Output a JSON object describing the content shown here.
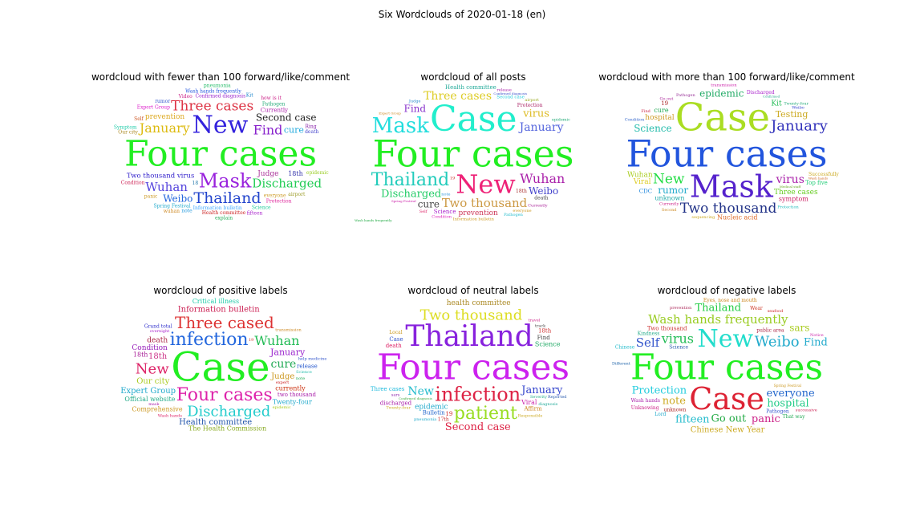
{
  "suptitle": "Six Wordclouds of 2020-01-18 (en)",
  "chart_data": [
    {
      "type": "wordcloud",
      "title": "wordcloud with fewer than 100 forward/like/comment",
      "words": [
        [
          "Four cases",
          44,
          "#22ee22"
        ],
        [
          "New",
          30,
          "#3322dd"
        ],
        [
          "Mask",
          24,
          "#9922dd"
        ],
        [
          "Thailand",
          19,
          "#2244cc"
        ],
        [
          "Three cases",
          17,
          "#dd3344"
        ],
        [
          "Two thousand virus",
          17,
          "#3322cc"
        ],
        [
          "Find",
          16,
          "#8822cc"
        ],
        [
          "January",
          16,
          "#ddbb11"
        ],
        [
          "Discharged",
          15,
          "#22cc55"
        ],
        [
          "Wuhan",
          15,
          "#5544dd"
        ],
        [
          "Second case",
          12,
          "#222222"
        ],
        [
          "Weibo",
          12,
          "#2266dd"
        ],
        [
          "Judge",
          9,
          "#aa3399"
        ],
        [
          "cure",
          11,
          "#22aadd"
        ],
        [
          "prevention",
          9,
          "#ddaa22"
        ],
        [
          "18th",
          8,
          "#3333aa"
        ],
        [
          "Currently",
          7,
          "#aa22aa"
        ],
        [
          "Information bulletin",
          6,
          "#44aaff"
        ],
        [
          "everyone",
          6,
          "#cc9922"
        ],
        [
          "Confirmed diagnosis",
          6,
          "#9922cc"
        ],
        [
          "Pathogen",
          6,
          "#22aa77"
        ],
        [
          "Health committee",
          6,
          "#cc2222"
        ],
        [
          "Expert Group",
          6,
          "#dd22cc"
        ],
        [
          "Wash hands frequently",
          6,
          "#2255dd"
        ],
        [
          "Spring Festival",
          6,
          "#22aacc"
        ],
        [
          "Protection",
          6,
          "#dd2299"
        ],
        [
          "Science",
          6,
          "#22cc99"
        ],
        [
          "Condition",
          6,
          "#cc2255"
        ],
        [
          "death",
          6,
          "#4444cc"
        ],
        [
          "note",
          6,
          "#2299dd"
        ],
        [
          "panic",
          6,
          "#cc9922"
        ],
        [
          "Our city",
          6,
          "#aa8822"
        ],
        [
          "how is it",
          6,
          "#cc2288"
        ],
        [
          "epidemic",
          6,
          "#99cc22"
        ],
        [
          "Video",
          6,
          "#cc2288"
        ],
        [
          "Kit",
          6,
          "#2288cc"
        ],
        [
          "airport",
          6,
          "#999922"
        ],
        [
          "explain",
          6,
          "#22aa55"
        ],
        [
          "Self",
          6,
          "#cc5522"
        ],
        [
          "rumor",
          6,
          "#3355cc"
        ],
        [
          "Symptom",
          6,
          "#22ccaa"
        ],
        [
          "fifteen",
          6,
          "#aa22cc"
        ],
        [
          "wuhan",
          6,
          "#cc8822"
        ],
        [
          "18",
          6,
          "#2277aa"
        ],
        [
          "Ring",
          6,
          "#8822aa"
        ],
        [
          "pneumonia",
          6,
          "#22bb66"
        ]
      ]
    },
    {
      "type": "wordcloud",
      "title": "wordcloud of all posts",
      "words": [
        [
          "Four cases",
          46,
          "#22ee22"
        ],
        [
          "Case",
          44,
          "#22eecc"
        ],
        [
          "New",
          32,
          "#ee2277"
        ],
        [
          "Thailand",
          22,
          "#22ccbb"
        ],
        [
          "Mask",
          26,
          "#22dddd"
        ],
        [
          "Wuhan",
          16,
          "#aa22aa"
        ],
        [
          "Two thousand",
          15,
          "#cc9944"
        ],
        [
          "Discharged",
          13,
          "#22cc66"
        ],
        [
          "Three cases",
          14,
          "#ddcc22"
        ],
        [
          "January",
          14,
          "#5566dd"
        ],
        [
          "virus",
          13,
          "#ddbb22"
        ],
        [
          "Find",
          12,
          "#8833cc"
        ],
        [
          "Weibo",
          12,
          "#4444cc"
        ],
        [
          "cure",
          12,
          "#444444"
        ],
        [
          "prevention",
          9,
          "#cc3355"
        ],
        [
          "Second case",
          11,
          "#22ccdd"
        ],
        [
          "Science",
          7,
          "#aa22cc"
        ],
        [
          "Health committee",
          7,
          "#22aa99"
        ],
        [
          "Protection",
          6,
          "#aa2266"
        ],
        [
          "death",
          6,
          "#444444"
        ],
        [
          "Information bulletin",
          5,
          "#cc9922"
        ],
        [
          "Wash hands frequently",
          5,
          "#22aa44"
        ],
        [
          "Confirmed diagnosis",
          5,
          "#4455cc"
        ],
        [
          "Spring Festival",
          5,
          "#cc22aa"
        ],
        [
          "Pathogen",
          5,
          "#22bbcc"
        ],
        [
          "18th",
          6,
          "#aa3333"
        ],
        [
          "Currently",
          5,
          "#aa2299"
        ],
        [
          "Expert Group",
          5,
          "#cc8822"
        ],
        [
          "airport",
          5,
          "#99aa22"
        ],
        [
          "everyone",
          5,
          "#cc9922"
        ],
        [
          "epidemic",
          5,
          "#22aa77"
        ],
        [
          "Judge",
          5,
          "#2288cc"
        ],
        [
          "Condition",
          5,
          "#dd22bb"
        ],
        [
          "note",
          5,
          "#3399dd"
        ],
        [
          "Self",
          5,
          "#dd2266"
        ],
        [
          "19",
          5,
          "#cc2222"
        ],
        [
          "release",
          5,
          "#aa22aa"
        ]
      ]
    },
    {
      "type": "wordcloud",
      "title": "wordcloud with more than 100 forward/like/comment",
      "words": [
        [
          "Four cases",
          46,
          "#2255dd"
        ],
        [
          "Case",
          48,
          "#aadd22"
        ],
        [
          "Mask",
          38,
          "#5522cc"
        ],
        [
          "New",
          34,
          "#22dd44"
        ],
        [
          "Two thousand",
          17,
          "#223388"
        ],
        [
          "January",
          18,
          "#3333bb"
        ],
        [
          "virus",
          14,
          "#aa22aa"
        ],
        [
          "Science",
          12,
          "#22bbaa"
        ],
        [
          "rumor",
          12,
          "#22aacc"
        ],
        [
          "Testing",
          11,
          "#ccaa22"
        ],
        [
          "epidemic",
          12,
          "#22aa66"
        ],
        [
          "Three cases",
          9,
          "#66cc22"
        ],
        [
          "hospital",
          9,
          "#cc9922"
        ],
        [
          "Wuhan",
          9,
          "#aacc22"
        ],
        [
          "Kit",
          9,
          "#22bb55"
        ],
        [
          "Viral",
          9,
          "#ddcc22"
        ],
        [
          "unknown",
          8,
          "#22aaaa"
        ],
        [
          "Nucleic acid",
          8,
          "#dd6622"
        ],
        [
          "symptom",
          8,
          "#cc2266"
        ],
        [
          "cure",
          8,
          "#22aa55"
        ],
        [
          "Top five",
          7,
          "#22cc77"
        ],
        [
          "Medical staff",
          7,
          "#66aa22"
        ],
        [
          "Discharged",
          6,
          "#aa22cc"
        ],
        [
          "CDC",
          7,
          "#2288dd"
        ],
        [
          "Successfully",
          6,
          "#ccaa22"
        ],
        [
          "Pathogen",
          5,
          "#993399"
        ],
        [
          "19",
          7,
          "#aa2222"
        ],
        [
          "Currently",
          5,
          "#cc2288"
        ],
        [
          "sequencing",
          5,
          "#ccaa22"
        ],
        [
          "transmission",
          5,
          "#cc22aa"
        ],
        [
          "Twenty-four",
          5,
          "#22aa77"
        ],
        [
          "Weibo",
          5,
          "#3344cc"
        ],
        [
          "Protection",
          5,
          "#22bbbb"
        ],
        [
          "Wash hands",
          5,
          "#cc6622"
        ],
        [
          "Condition",
          5,
          "#3366cc"
        ],
        [
          "Go out",
          5,
          "#aa2299"
        ],
        [
          "Confirmed",
          5,
          "#22aa88"
        ],
        [
          "Find",
          5,
          "#cc2244"
        ],
        [
          "Second",
          5,
          "#cc8822"
        ]
      ]
    },
    {
      "type": "wordcloud",
      "title": "wordcloud of positive labels",
      "words": [
        [
          "Case",
          50,
          "#22ee22"
        ],
        [
          "Four cases",
          22,
          "#dd22aa"
        ],
        [
          "infection",
          22,
          "#2266dd"
        ],
        [
          "Three cased",
          20,
          "#dd3333"
        ],
        [
          "Discharged",
          18,
          "#22cccc"
        ],
        [
          "Wuhan",
          16,
          "#22bb55"
        ],
        [
          "New",
          18,
          "#dd2266"
        ],
        [
          "cure",
          14,
          "#22aa55"
        ],
        [
          "Health committee",
          10,
          "#2255aa"
        ],
        [
          "January",
          11,
          "#9922cc"
        ],
        [
          "Expert Group",
          10,
          "#22aacc"
        ],
        [
          "Judge",
          10,
          "#cc9922"
        ],
        [
          "Information bulletin",
          10,
          "#cc2255"
        ],
        [
          "Our city",
          10,
          "#aacc22"
        ],
        [
          "18th",
          10,
          "#cc3388"
        ],
        [
          "Condition",
          9,
          "#9922bb"
        ],
        [
          "currently",
          8,
          "#cc3311"
        ],
        [
          "death",
          9,
          "#aa2244"
        ],
        [
          "Official website",
          8,
          "#22aa88"
        ],
        [
          "The Health Commission",
          8,
          "#88aa22"
        ],
        [
          "Comprehensive",
          8,
          "#cc9922"
        ],
        [
          "two thousand",
          7,
          "#aa22aa"
        ],
        [
          "Twenty-four",
          8,
          "#22aacc"
        ],
        [
          "Grand total",
          6,
          "#3333cc"
        ],
        [
          "18th",
          8,
          "#aa2299"
        ],
        [
          "release",
          7,
          "#2255cc"
        ],
        [
          "Critical illness",
          8,
          "#22ccaa"
        ],
        [
          "expert",
          5,
          "#cc2222"
        ],
        [
          "note",
          5,
          "#22aa55"
        ],
        [
          "overnight",
          5,
          "#aa22cc"
        ],
        [
          "transmission",
          5,
          "#cc8822"
        ],
        [
          "Science",
          5,
          "#22bbaa"
        ],
        [
          "help medicine",
          5,
          "#3355cc"
        ],
        [
          "Wash hands",
          5,
          "#dd2266"
        ],
        [
          "epidemic",
          5,
          "#aacc22"
        ],
        [
          "mask",
          5,
          "#aa22aa"
        ],
        [
          "19",
          5,
          "#cc3322"
        ]
      ]
    },
    {
      "type": "wordcloud",
      "title": "wordcloud of neutral labels",
      "words": [
        [
          "Four cases",
          44,
          "#cc22ee"
        ],
        [
          "Thailand",
          36,
          "#8822dd"
        ],
        [
          "infection",
          24,
          "#dd2244"
        ],
        [
          "patient",
          22,
          "#99dd22"
        ],
        [
          "Two thousand",
          18,
          "#dddd22"
        ],
        [
          "New",
          14,
          "#22bbcc"
        ],
        [
          "Second case",
          13,
          "#dd2244"
        ],
        [
          "January",
          13,
          "#3344cc"
        ],
        [
          "epidemic",
          9,
          "#22aacc"
        ],
        [
          "health committee",
          9,
          "#aa8822"
        ],
        [
          "Confirmed diagnosis",
          8,
          "#44aa44"
        ],
        [
          "Viral",
          8,
          "#cc22aa"
        ],
        [
          "Science",
          8,
          "#22aa66"
        ],
        [
          "Bulletin",
          7,
          "#2266cc"
        ],
        [
          "Three cases",
          7,
          "#22bbdd"
        ],
        [
          "Find",
          7,
          "#444444"
        ],
        [
          "death",
          7,
          "#dd2266"
        ],
        [
          "Affirm",
          7,
          "#cc8822"
        ],
        [
          "Case",
          7,
          "#3355cc"
        ],
        [
          "discharged",
          7,
          "#aa22aa"
        ],
        [
          "18th",
          7,
          "#cc3333"
        ],
        [
          "17th",
          6,
          "#cc3333"
        ],
        [
          "19",
          7,
          "#cc2222"
        ],
        [
          "Severity",
          5,
          "#22aa88"
        ],
        [
          "Responsible",
          5,
          "#ccaa22"
        ],
        [
          "Local",
          6,
          "#cc9922"
        ],
        [
          "diagnosis",
          5,
          "#22aa99"
        ],
        [
          "Twenty-four",
          5,
          "#ccaa22"
        ],
        [
          "sars",
          5,
          "#8822aa"
        ],
        [
          "track",
          5,
          "#444444"
        ],
        [
          "Reported",
          5,
          "#2255aa"
        ],
        [
          "travel",
          5,
          "#cc2288"
        ],
        [
          "pneumonia",
          5,
          "#22aacc"
        ]
      ]
    },
    {
      "type": "wordcloud",
      "title": "wordcloud of negative labels",
      "words": [
        [
          "Four cases",
          44,
          "#22ee22"
        ],
        [
          "Case",
          38,
          "#dd2233"
        ],
        [
          "New",
          30,
          "#22ddcc"
        ],
        [
          "Weibo",
          18,
          "#22aacc"
        ],
        [
          "Wash hands frequently",
          15,
          "#99cc22"
        ],
        [
          "virus",
          16,
          "#22bb55"
        ],
        [
          "everyone",
          13,
          "#2266cc"
        ],
        [
          "Protection",
          13,
          "#22ccdd"
        ],
        [
          "Go out",
          13,
          "#22aa44"
        ],
        [
          "hospital",
          13,
          "#22cc88"
        ],
        [
          "note",
          13,
          "#ccaa22"
        ],
        [
          "fifteen",
          13,
          "#22bbcc"
        ],
        [
          "Thailand",
          13,
          "#22cc44"
        ],
        [
          "Self",
          15,
          "#3355cc"
        ],
        [
          "panic",
          13,
          "#cc2288"
        ],
        [
          "Find",
          13,
          "#22aacc"
        ],
        [
          "Chinese New Year",
          10,
          "#ccaa22"
        ],
        [
          "Spring Festival",
          9,
          "#cc9922"
        ],
        [
          "sars",
          12,
          "#aacc22"
        ],
        [
          "Two thousand",
          7,
          "#cc3333"
        ],
        [
          "public area",
          6,
          "#aa2244"
        ],
        [
          "unknown",
          6,
          "#aa2222"
        ],
        [
          "Eyes, nose and mouth",
          6,
          "#cc8822"
        ],
        [
          "Pathogen",
          6,
          "#3355cc"
        ],
        [
          "Wash hands",
          6,
          "#aa22aa"
        ],
        [
          "Science",
          6,
          "#2255aa"
        ],
        [
          "Kindness",
          6,
          "#22aa88"
        ],
        [
          "Wear",
          6,
          "#cc3322"
        ],
        [
          "That way",
          6,
          "#22aa55"
        ],
        [
          "Unknowing",
          6,
          "#cc2288"
        ],
        [
          "Lord",
          6,
          "#22aacc"
        ],
        [
          "prevention",
          5,
          "#aa2255"
        ],
        [
          "successive",
          5,
          "#cc2255"
        ],
        [
          "seafood",
          5,
          "#cc2222"
        ],
        [
          "Chinese",
          6,
          "#22bbcc"
        ],
        [
          "Different",
          5,
          "#2266aa"
        ],
        [
          "Notice",
          5,
          "#cc22aa"
        ]
      ]
    }
  ]
}
